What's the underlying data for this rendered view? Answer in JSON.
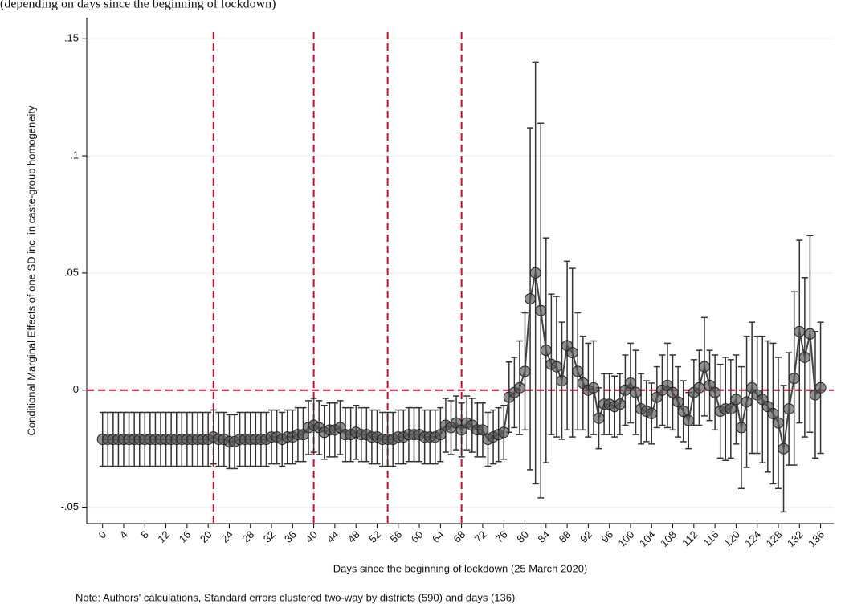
{
  "chart_data": {
    "type": "line",
    "heading": "(depending on days since the beginning of lockdown)",
    "xlabel": "Days since the beginning of lockdown (25 March 2020)",
    "ylabel": "Conditional Marginal Effects of one SD inc. in caste-group homogeneity",
    "note": "Note: Authors' calculations, Standard errors clustered two-way by districts (590) and days (136)",
    "x": [
      0,
      1,
      2,
      3,
      4,
      5,
      6,
      7,
      8,
      9,
      10,
      11,
      12,
      13,
      14,
      15,
      16,
      17,
      18,
      19,
      20,
      21,
      22,
      23,
      24,
      25,
      26,
      27,
      28,
      29,
      30,
      31,
      32,
      33,
      34,
      35,
      36,
      37,
      38,
      39,
      40,
      41,
      42,
      43,
      44,
      45,
      46,
      47,
      48,
      49,
      50,
      51,
      52,
      53,
      54,
      55,
      56,
      57,
      58,
      59,
      60,
      61,
      62,
      63,
      64,
      65,
      66,
      67,
      68,
      69,
      70,
      71,
      72,
      73,
      74,
      75,
      76,
      77,
      78,
      79,
      80,
      81,
      82,
      83,
      84,
      85,
      86,
      87,
      88,
      89,
      90,
      91,
      92,
      93,
      94,
      95,
      96,
      97,
      98,
      99,
      100,
      101,
      102,
      103,
      104,
      105,
      106,
      107,
      108,
      109,
      110,
      111,
      112,
      113,
      114,
      115,
      116,
      117,
      118,
      119,
      120,
      121,
      122,
      123,
      124,
      125,
      126,
      127,
      128,
      129,
      130,
      131,
      132,
      133,
      134,
      135,
      136
    ],
    "values": [
      -0.021,
      -0.021,
      -0.021,
      -0.021,
      -0.021,
      -0.021,
      -0.021,
      -0.021,
      -0.021,
      -0.021,
      -0.021,
      -0.021,
      -0.021,
      -0.021,
      -0.021,
      -0.021,
      -0.021,
      -0.021,
      -0.021,
      -0.021,
      -0.021,
      -0.02,
      -0.021,
      -0.021,
      -0.022,
      -0.022,
      -0.021,
      -0.021,
      -0.021,
      -0.021,
      -0.021,
      -0.021,
      -0.02,
      -0.02,
      -0.021,
      -0.02,
      -0.02,
      -0.019,
      -0.019,
      -0.016,
      -0.015,
      -0.016,
      -0.018,
      -0.017,
      -0.017,
      -0.016,
      -0.019,
      -0.019,
      -0.018,
      -0.019,
      -0.019,
      -0.02,
      -0.02,
      -0.021,
      -0.021,
      -0.021,
      -0.02,
      -0.02,
      -0.019,
      -0.019,
      -0.019,
      -0.02,
      -0.02,
      -0.02,
      -0.019,
      -0.015,
      -0.016,
      -0.014,
      -0.017,
      -0.014,
      -0.015,
      -0.017,
      -0.017,
      -0.021,
      -0.02,
      -0.019,
      -0.018,
      -0.003,
      -0.001,
      0.001,
      0.008,
      0.039,
      0.05,
      0.034,
      0.017,
      0.011,
      0.01,
      0.004,
      0.019,
      0.016,
      0.008,
      0.003,
      0,
      0.001,
      -0.012,
      -0.006,
      -0.006,
      -0.007,
      -0.006,
      0,
      0.003,
      -0.001,
      -0.008,
      -0.009,
      -0.01,
      -0.003,
      0,
      0.002,
      -0.001,
      -0.005,
      -0.009,
      -0.013,
      -0.001,
      0.001,
      0.01,
      0.002,
      -0.001,
      -0.009,
      -0.008,
      -0.008,
      -0.004,
      -0.016,
      -0.005,
      0.001,
      -0.002,
      -0.004,
      -0.007,
      -0.01,
      -0.014,
      -0.025,
      -0.008,
      0.005,
      0.025,
      0.014,
      0.024,
      -0.002,
      0.001
    ],
    "errors": [
      0.0115,
      0.0115,
      0.0115,
      0.0115,
      0.0115,
      0.0115,
      0.0115,
      0.0115,
      0.0115,
      0.0115,
      0.0115,
      0.0115,
      0.0115,
      0.0115,
      0.0115,
      0.0115,
      0.0115,
      0.0115,
      0.0115,
      0.0115,
      0.0115,
      0.0115,
      0.0115,
      0.0115,
      0.0115,
      0.0115,
      0.0115,
      0.0115,
      0.0115,
      0.0115,
      0.0115,
      0.0115,
      0.0115,
      0.0115,
      0.0115,
      0.0115,
      0.0115,
      0.0115,
      0.0115,
      0.0115,
      0.0115,
      0.0115,
      0.0115,
      0.0115,
      0.0115,
      0.0115,
      0.0115,
      0.0115,
      0.0115,
      0.0115,
      0.0115,
      0.0115,
      0.0115,
      0.0115,
      0.0115,
      0.0115,
      0.0115,
      0.0115,
      0.0115,
      0.0115,
      0.0115,
      0.0115,
      0.0115,
      0.0115,
      0.0115,
      0.0115,
      0.0115,
      0.0115,
      0.0115,
      0.0115,
      0.0115,
      0.0115,
      0.0115,
      0.0115,
      0.0115,
      0.0115,
      0.0115,
      0.015,
      0.015,
      0.02,
      0.025,
      0.073,
      0.09,
      0.08,
      0.048,
      0.03,
      0.03,
      0.025,
      0.036,
      0.036,
      0.025,
      0.02,
      0.02,
      0.02,
      0.013,
      0.013,
      0.013,
      0.013,
      0.013,
      0.015,
      0.017,
      0.018,
      0.015,
      0.013,
      0.013,
      0.013,
      0.015,
      0.018,
      0.016,
      0.015,
      0.013,
      0.012,
      0.014,
      0.016,
      0.021,
      0.015,
      0.016,
      0.02,
      0.022,
      0.021,
      0.019,
      0.026,
      0.028,
      0.028,
      0.025,
      0.027,
      0.028,
      0.03,
      0.028,
      0.027,
      0.024,
      0.037,
      0.039,
      0.034,
      0.042,
      0.027,
      0.028
    ],
    "color": "#555555",
    "vlines": [
      21,
      40,
      54,
      68
    ],
    "hline": 0,
    "ref_color": "#c8102e",
    "xlim": [
      -3,
      138.5
    ],
    "ylim": [
      -0.057,
      0.159
    ],
    "xticks": [
      0,
      4,
      8,
      12,
      16,
      20,
      24,
      28,
      32,
      36,
      40,
      44,
      48,
      52,
      56,
      60,
      64,
      68,
      72,
      76,
      80,
      84,
      88,
      92,
      96,
      100,
      104,
      108,
      112,
      116,
      120,
      124,
      128,
      132,
      136
    ],
    "yticks": [
      {
        "value": -0.05,
        "label": "-.05"
      },
      0,
      {
        "value": 0.05,
        "label": ".05"
      },
      {
        "value": 0.1,
        "label": ".1"
      },
      {
        "value": 0.15,
        "label": ".15"
      }
    ],
    "grid": true
  }
}
